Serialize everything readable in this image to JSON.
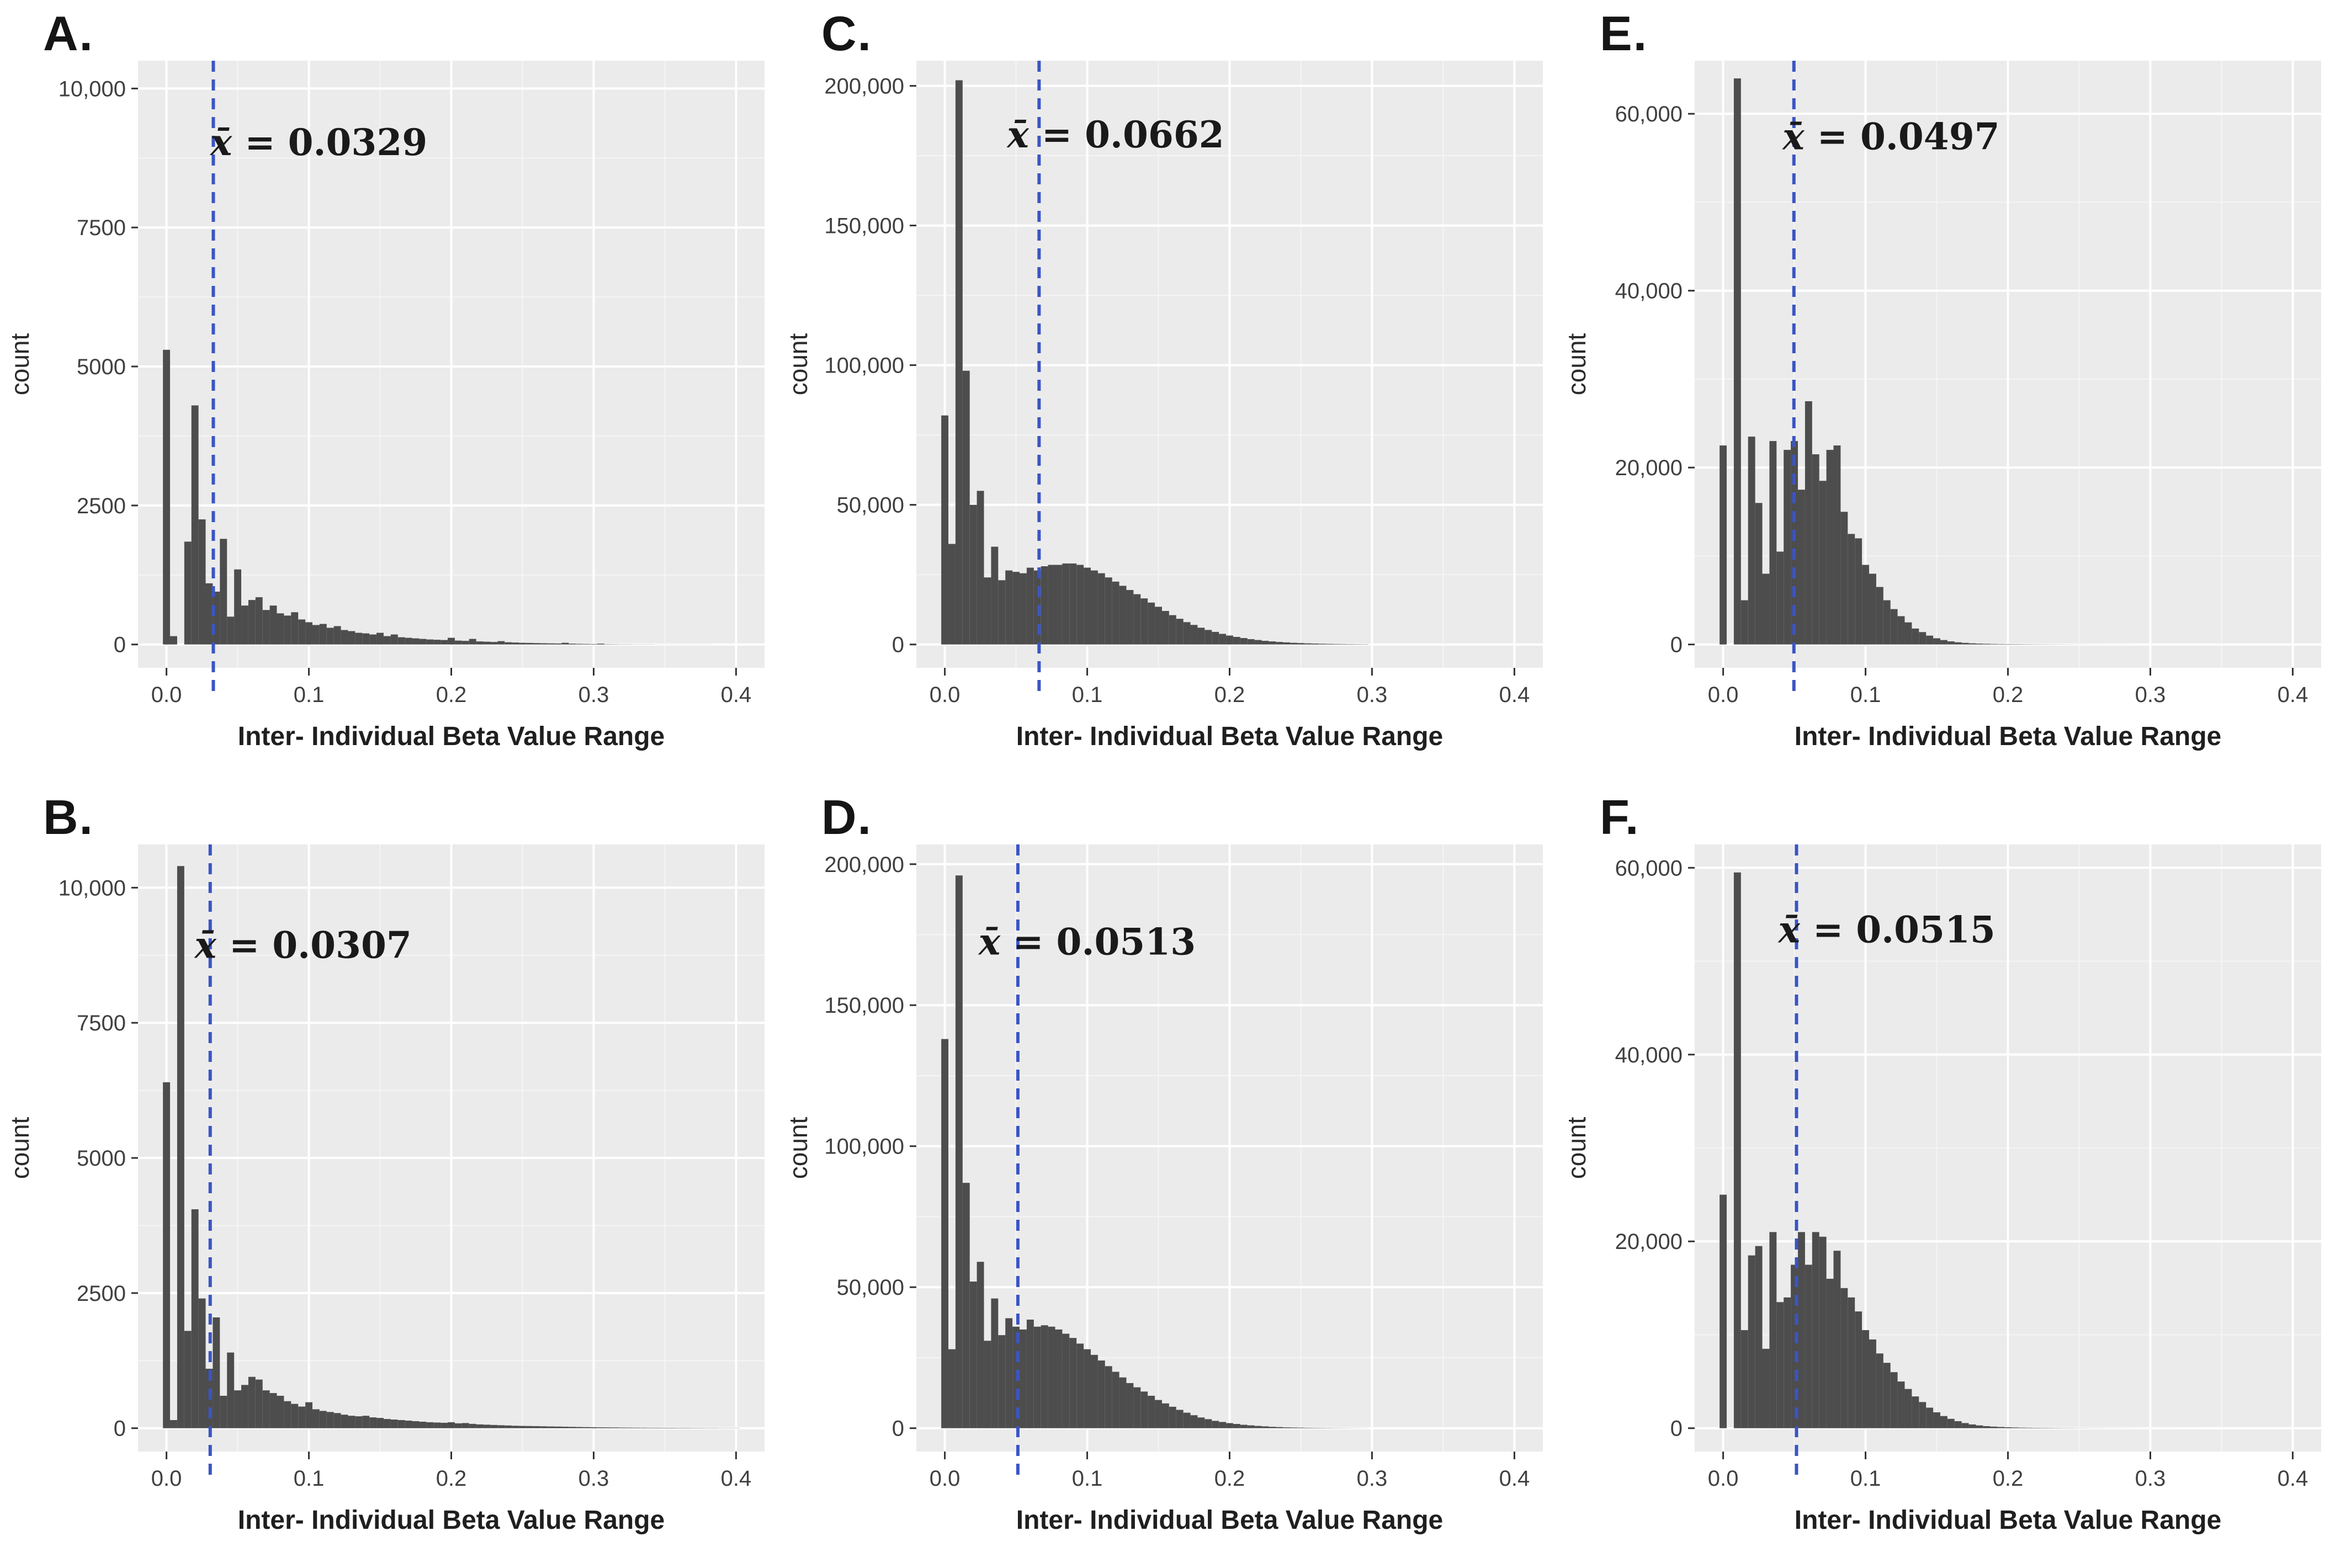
{
  "figure": {
    "title": "",
    "xlabel": "Inter- Individual Beta Value Range",
    "ylabel": "count",
    "xlim": [
      -0.02,
      0.42
    ],
    "xtick_values": [
      0.0,
      0.1,
      0.2,
      0.3,
      0.4
    ],
    "xtick_labels": [
      "0.0",
      "0.1",
      "0.2",
      "0.3",
      "0.4"
    ],
    "xminor_values": [
      0.05,
      0.15,
      0.25,
      0.35
    ],
    "grid": "on",
    "colors": {
      "bar": "#4d4d4d",
      "mean_line": "#3a55c4",
      "plot_bg": "#ebebeb",
      "grid_major": "#ffffff",
      "grid_minor": "#f5f5f5",
      "tick_text": "#404040",
      "axis_label": "#1f1f1f",
      "tick_mark": "#333333"
    }
  },
  "chart_data": [
    {
      "type": "bar",
      "panel": "A.",
      "mean_label": "x̄ = 0.0329",
      "mean": 0.0329,
      "annotation_x": 0.107,
      "annotation_y": 8800,
      "ymax": 10500,
      "ytick_values": [
        0,
        2500,
        5000,
        7500,
        10000
      ],
      "ytick_labels": [
        "0",
        "2500",
        "5000",
        "7500",
        "10,000"
      ],
      "yminor_values": [
        1250,
        3750,
        6250,
        8750
      ],
      "bin_start": 0.0,
      "bin_width": 0.005,
      "values": [
        5300,
        150,
        0,
        1850,
        4300,
        2250,
        1100,
        950,
        1900,
        500,
        1350,
        700,
        800,
        850,
        620,
        700,
        560,
        520,
        580,
        450,
        400,
        350,
        370,
        300,
        330,
        260,
        240,
        210,
        200,
        180,
        210,
        150,
        180,
        130,
        120,
        110,
        100,
        90,
        85,
        80,
        120,
        70,
        65,
        100,
        55,
        50,
        45,
        60,
        40,
        35,
        30,
        28,
        25,
        22,
        20,
        18,
        30,
        15,
        12,
        10,
        8,
        15,
        5,
        4,
        3,
        3,
        2,
        2,
        2,
        1,
        1,
        1,
        1,
        1,
        1,
        1,
        1,
        0,
        0,
        0,
        0
      ]
    },
    {
      "type": "bar",
      "panel": "B.",
      "mean_label": "x̄ = 0.0307",
      "mean": 0.0307,
      "annotation_x": 0.096,
      "annotation_y": 8700,
      "ymax": 10800,
      "ytick_values": [
        0,
        2500,
        5000,
        7500,
        10000
      ],
      "ytick_labels": [
        "0",
        "2500",
        "5000",
        "7500",
        "10,000"
      ],
      "yminor_values": [
        1250,
        3750,
        6250,
        8750
      ],
      "bin_start": 0.0,
      "bin_width": 0.005,
      "values": [
        6400,
        150,
        10400,
        1800,
        4050,
        2400,
        1100,
        2050,
        600,
        1400,
        700,
        800,
        950,
        900,
        700,
        650,
        600,
        500,
        450,
        400,
        480,
        350,
        320,
        300,
        280,
        250,
        230,
        220,
        230,
        200,
        190,
        170,
        160,
        150,
        140,
        130,
        120,
        110,
        105,
        100,
        110,
        90,
        95,
        80,
        70,
        65,
        60,
        55,
        50,
        45,
        42,
        40,
        38,
        35,
        32,
        30,
        28,
        25,
        22,
        20,
        18,
        16,
        15,
        14,
        12,
        11,
        10,
        9,
        8,
        8,
        7,
        7,
        6,
        6,
        5,
        5,
        4,
        4,
        3,
        3,
        3
      ]
    },
    {
      "type": "bar",
      "panel": "C.",
      "mean_label": "x̄ = 0.0662",
      "mean": 0.0662,
      "annotation_x": 0.12,
      "annotation_y": 178000,
      "ymax": 209000,
      "ytick_values": [
        0,
        50000,
        100000,
        150000,
        200000
      ],
      "ytick_labels": [
        "0",
        "50,000",
        "100,000",
        "150,000",
        "200,000"
      ],
      "yminor_values": [
        25000,
        75000,
        125000,
        175000
      ],
      "bin_start": 0.0,
      "bin_width": 0.005,
      "values": [
        82000,
        36000,
        202000,
        98000,
        50000,
        55000,
        24000,
        35000,
        23000,
        26500,
        26000,
        25500,
        27500,
        26500,
        28000,
        28500,
        28500,
        29000,
        29000,
        28500,
        27500,
        26500,
        25500,
        24000,
        22500,
        21000,
        19500,
        18000,
        16500,
        15000,
        13500,
        12000,
        10500,
        9200,
        8000,
        7000,
        6000,
        5200,
        4500,
        3800,
        3200,
        2700,
        2300,
        1900,
        1600,
        1300,
        1100,
        900,
        750,
        600,
        500,
        400,
        330,
        270,
        220,
        180,
        150,
        120,
        100,
        80,
        0,
        0,
        0,
        0,
        0,
        0,
        0,
        0,
        0,
        0,
        0,
        0,
        0,
        0,
        0,
        0,
        0,
        0,
        0,
        0,
        0
      ]
    },
    {
      "type": "bar",
      "panel": "D.",
      "mean_label": "x̄ = 0.0513",
      "mean": 0.0513,
      "annotation_x": 0.1,
      "annotation_y": 168000,
      "ymax": 207000,
      "ytick_values": [
        0,
        50000,
        100000,
        150000,
        200000
      ],
      "ytick_labels": [
        "0",
        "50,000",
        "100,000",
        "150,000",
        "200,000"
      ],
      "yminor_values": [
        25000,
        75000,
        125000,
        175000
      ],
      "bin_start": 0.0,
      "bin_width": 0.005,
      "values": [
        138000,
        28000,
        196000,
        87000,
        52000,
        59000,
        31000,
        46000,
        33000,
        39000,
        36000,
        35000,
        38500,
        36000,
        36500,
        36000,
        35000,
        33500,
        32000,
        30000,
        28000,
        26000,
        24000,
        22000,
        20000,
        18000,
        16000,
        14500,
        13000,
        11500,
        10000,
        8800,
        7600,
        6500,
        5500,
        4600,
        3800,
        3200,
        2600,
        2200,
        1800,
        1500,
        1200,
        1000,
        800,
        650,
        500,
        400,
        300,
        250,
        200,
        150,
        120,
        100,
        80,
        60,
        50,
        40,
        30,
        20,
        0,
        0,
        0,
        0,
        0,
        0,
        0,
        0,
        0,
        0,
        0,
        0,
        0,
        0,
        0,
        0,
        0,
        0,
        0,
        0,
        0
      ]
    },
    {
      "type": "bar",
      "panel": "E.",
      "mean_label": "x̄ = 0.0497",
      "mean": 0.0497,
      "annotation_x": 0.118,
      "annotation_y": 56000,
      "ymax": 66000,
      "ytick_values": [
        0,
        20000,
        40000,
        60000
      ],
      "ytick_labels": [
        "0",
        "20,000",
        "40,000",
        "60,000"
      ],
      "yminor_values": [
        10000,
        30000,
        50000
      ],
      "bin_start": 0.0,
      "bin_width": 0.005,
      "values": [
        22500,
        0,
        64000,
        5000,
        23500,
        16000,
        8000,
        23000,
        10500,
        22000,
        23000,
        17500,
        27500,
        21500,
        18500,
        22000,
        22500,
        15000,
        12500,
        12000,
        9000,
        8000,
        6500,
        5000,
        4000,
        3200,
        2500,
        1800,
        1400,
        1000,
        700,
        500,
        350,
        250,
        180,
        130,
        100,
        80,
        60,
        50,
        40,
        35,
        30,
        25,
        20,
        18,
        15,
        12,
        10,
        8,
        7,
        6,
        5,
        5,
        4,
        4,
        3,
        3,
        2,
        2,
        2,
        1,
        1,
        1,
        1,
        1,
        1,
        1,
        1,
        1,
        1,
        1,
        1,
        1,
        1,
        1,
        1,
        1,
        1,
        1,
        1
      ]
    },
    {
      "type": "bar",
      "panel": "F.",
      "mean_label": "x̄ = 0.0515",
      "mean": 0.0515,
      "annotation_x": 0.115,
      "annotation_y": 52000,
      "ymax": 62500,
      "ytick_values": [
        0,
        20000,
        40000,
        60000
      ],
      "ytick_labels": [
        "0",
        "20,000",
        "40,000",
        "60,000"
      ],
      "yminor_values": [
        10000,
        30000,
        50000
      ],
      "bin_start": 0.0,
      "bin_width": 0.005,
      "values": [
        25000,
        0,
        59500,
        10500,
        18500,
        19500,
        8500,
        21000,
        13500,
        14000,
        17500,
        21000,
        17500,
        21000,
        20500,
        16000,
        19000,
        15000,
        14000,
        12500,
        10500,
        9500,
        8000,
        7000,
        6000,
        5000,
        4200,
        3400,
        2800,
        2200,
        1700,
        1300,
        1000,
        750,
        550,
        400,
        300,
        220,
        170,
        130,
        100,
        80,
        60,
        50,
        40,
        35,
        30,
        25,
        20,
        18,
        15,
        12,
        10,
        9,
        8,
        7,
        6,
        5,
        5,
        4,
        4,
        3,
        3,
        3,
        2,
        2,
        2,
        2,
        1,
        1,
        1,
        1,
        1,
        1,
        1,
        1,
        1,
        1,
        1,
        1,
        1
      ]
    }
  ]
}
